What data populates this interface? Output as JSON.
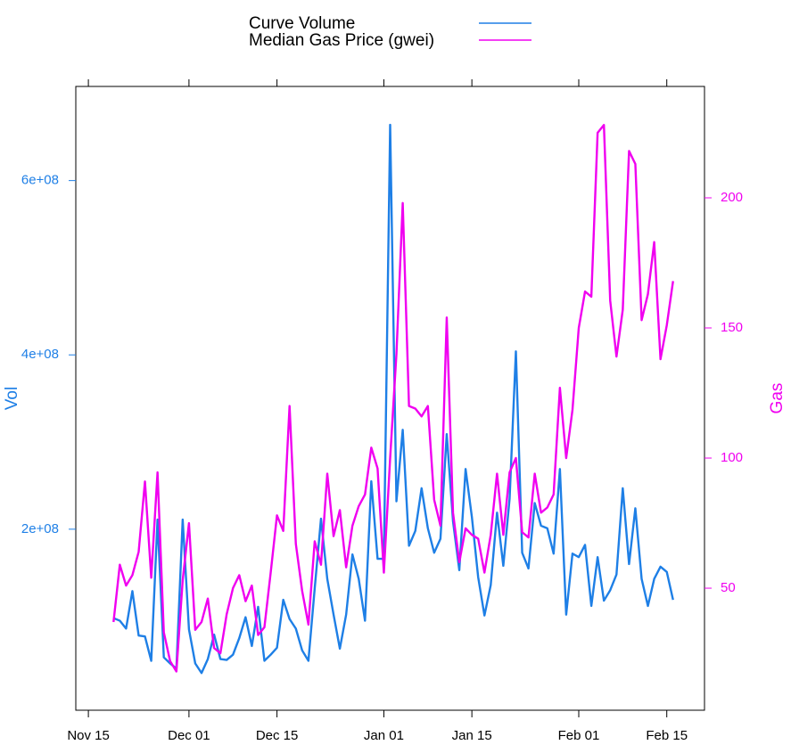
{
  "chart_data": {
    "type": "line",
    "ylabel": "Vol",
    "y2label": "Gas",
    "x": [
      "Nov 19",
      "Nov 20",
      "Nov 21",
      "Nov 22",
      "Nov 23",
      "Nov 24",
      "Nov 25",
      "Nov 26",
      "Nov 27",
      "Nov 28",
      "Nov 29",
      "Nov 30",
      "Dec 1",
      "Dec 2",
      "Dec 3",
      "Dec 4",
      "Dec 5",
      "Dec 6",
      "Dec 7",
      "Dec 8",
      "Dec 9",
      "Dec 10",
      "Dec 11",
      "Dec 12",
      "Dec 13",
      "Dec 14",
      "Dec 15",
      "Dec 16",
      "Dec 17",
      "Dec 18",
      "Dec 19",
      "Dec 20",
      "Dec 21",
      "Dec 22",
      "Dec 23",
      "Dec 24",
      "Dec 25",
      "Dec 26",
      "Dec 27",
      "Dec 28",
      "Dec 29",
      "Dec 30",
      "Dec 31",
      "Jan 1",
      "Jan 2",
      "Jan 3",
      "Jan 4",
      "Jan 5",
      "Jan 6",
      "Jan 7",
      "Jan 8",
      "Jan 9",
      "Jan 10",
      "Jan 11",
      "Jan 12",
      "Jan 13",
      "Jan 14",
      "Jan 15",
      "Jan 16",
      "Jan 17",
      "Jan 18",
      "Jan 19",
      "Jan 20",
      "Jan 21",
      "Jan 22",
      "Jan 23",
      "Jan 24",
      "Jan 25",
      "Jan 26",
      "Jan 27",
      "Jan 28",
      "Jan 29",
      "Jan 30",
      "Jan 31",
      "Feb 1",
      "Feb 2",
      "Feb 3",
      "Feb 4",
      "Feb 5",
      "Feb 6",
      "Feb 7",
      "Feb 8",
      "Feb 9",
      "Feb 10",
      "Feb 11",
      "Feb 12",
      "Feb 13",
      "Feb 14",
      "Feb 15",
      "Feb 16"
    ],
    "series": [
      {
        "name": "Curve Volume",
        "color": "#1e7fe6",
        "axis": "y",
        "values": [
          98000000,
          95000000,
          86000000,
          129000000,
          78000000,
          77000000,
          49000000,
          211000000,
          53000000,
          46000000,
          40000000,
          211000000,
          85000000,
          46000000,
          35000000,
          51000000,
          79000000,
          51000000,
          50000000,
          56000000,
          75000000,
          99000000,
          66000000,
          111000000,
          49000000,
          56000000,
          64000000,
          119000000,
          97000000,
          86000000,
          61000000,
          49000000,
          132000000,
          212000000,
          143000000,
          102000000,
          63000000,
          102000000,
          171000000,
          143000000,
          95000000,
          255000000,
          166000000,
          166000000,
          664000000,
          232000000,
          314000000,
          181000000,
          198000000,
          247000000,
          201000000,
          173000000,
          189000000,
          309000000,
          209000000,
          153000000,
          269000000,
          214000000,
          145000000,
          101000000,
          136000000,
          219000000,
          158000000,
          235000000,
          404000000,
          173000000,
          155000000,
          230000000,
          204000000,
          201000000,
          172000000,
          269000000,
          102000000,
          172000000,
          168000000,
          182000000,
          112000000,
          168000000,
          118000000,
          130000000,
          148000000,
          247000000,
          160000000,
          224000000,
          143000000,
          112000000,
          143000000,
          157000000,
          151000000,
          119000000
        ]
      },
      {
        "name": "Median Gas Price (gwei)",
        "color": "#f000f0",
        "axis": "y2",
        "values": [
          37,
          59,
          51,
          55,
          64,
          91,
          54,
          94.5,
          33,
          22,
          18,
          53,
          75,
          34,
          37,
          46,
          27,
          25,
          40,
          50,
          55,
          45,
          51,
          32,
          35,
          56,
          78,
          72,
          120,
          67,
          49,
          36,
          68,
          59,
          94,
          70,
          80,
          58,
          74,
          81.5,
          86,
          104,
          96,
          56,
          100,
          140,
          198,
          120,
          119,
          116,
          120,
          84,
          74,
          154,
          79,
          60,
          73,
          70.5,
          69,
          56,
          70.5,
          94,
          70.5,
          94.5,
          100,
          71.5,
          69.5,
          94,
          79,
          81,
          86,
          127,
          100,
          118.5,
          150,
          164,
          162,
          225,
          228,
          160.5,
          139,
          157,
          218,
          213,
          153,
          163,
          183,
          138,
          151,
          168
        ]
      }
    ],
    "xlim": [
      "Nov 13",
      "Feb 21"
    ],
    "xticks": [
      "Nov 15",
      "Dec 01",
      "Dec 15",
      "Jan 01",
      "Jan 15",
      "Feb 01",
      "Feb 15"
    ],
    "ylim": [
      -7700000,
      708000000
    ],
    "yticks": [
      {
        "value": 200000000,
        "label": "2e+08"
      },
      {
        "value": 400000000,
        "label": "4e+08"
      },
      {
        "value": 600000000,
        "label": "6e+08"
      }
    ],
    "y2lim": [
      3.1,
      242.8
    ],
    "y2ticks": [
      50,
      100,
      150,
      200
    ],
    "legend": "top"
  }
}
